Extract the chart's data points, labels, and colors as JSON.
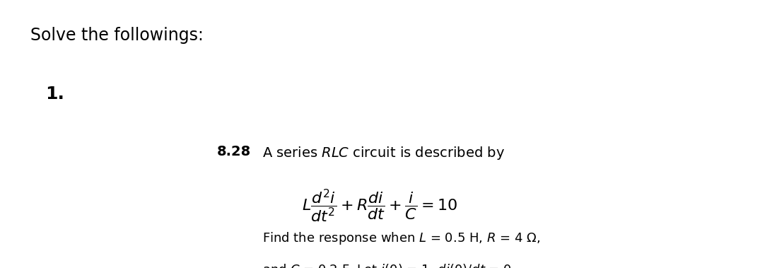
{
  "title": "Solve the followings:",
  "number": "1.",
  "problem_num": "8.28",
  "bg_color": "#ffffff",
  "text_color": "#000000",
  "title_fontsize": 17,
  "number_fontsize": 18,
  "prob_fontsize": 14,
  "eq_fontsize": 16,
  "find_fontsize": 13
}
